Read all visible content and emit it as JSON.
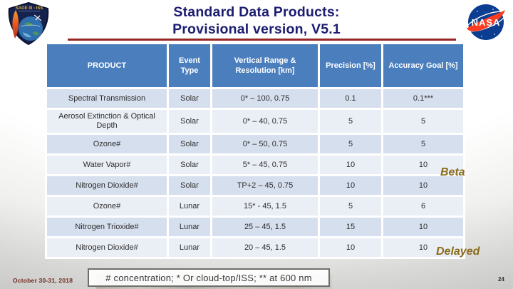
{
  "slide": {
    "title_line1": "Standard Data Products:",
    "title_line2": "Provisional version, V5.1",
    "footnote": "# concentration; * Or cloud-top/ISS; ** at 600 nm",
    "date": "October 30-31, 2018",
    "page_number": "24"
  },
  "logos": {
    "patch_text": "SAGE III - ISS",
    "nasa_text": "NASA"
  },
  "table": {
    "columns": [
      "PRODUCT",
      "Event Type",
      "Vertical Range & Resolution [km]",
      "Precision [%]",
      "Accuracy Goal [%]"
    ],
    "rows": [
      {
        "product": "Spectral Transmission",
        "event": "Solar",
        "range": "0* – 100, 0.75",
        "precision": "0.1",
        "accuracy": "0.1***",
        "annotation": ""
      },
      {
        "product": "Aerosol Extinction & Optical Depth",
        "event": "Solar",
        "range": "0* – 40, 0.75",
        "precision": "5",
        "accuracy": "5",
        "annotation": ""
      },
      {
        "product": "Ozone#",
        "event": "Solar",
        "range": "0* – 50, 0.75",
        "precision": "5",
        "accuracy": "5",
        "annotation": ""
      },
      {
        "product": "Water Vapor#",
        "event": "Solar",
        "range": "5* – 45, 0.75",
        "precision": "10",
        "accuracy": "10",
        "annotation": "Beta"
      },
      {
        "product": "Nitrogen Dioxide#",
        "event": "Solar",
        "range": "TP+2 – 45, 0.75",
        "precision": "10",
        "accuracy": "10",
        "annotation": ""
      },
      {
        "product": "Ozone#",
        "event": "Lunar",
        "range": "15* - 45, 1.5",
        "precision": "5",
        "accuracy": "6",
        "annotation": ""
      },
      {
        "product": "Nitrogen Trioxide#",
        "event": "Lunar",
        "range": "25 – 45, 1.5",
        "precision": "15",
        "accuracy": "10",
        "annotation": ""
      },
      {
        "product": "Nitrogen Dioxide#",
        "event": "Lunar",
        "range": "20 – 45, 1.5",
        "precision": "10",
        "accuracy": "10",
        "annotation": "Delayed"
      }
    ]
  },
  "annotations": {
    "beta": "Beta",
    "delayed": "Delayed"
  },
  "colors": {
    "header_blue": "#4a7ebd",
    "row_dark": "#d6dfee",
    "row_light": "#eaeef5",
    "title_navy": "#1c1c70",
    "rule_maroon": "#952824",
    "annotation_gold": "#8c6c1c",
    "footnote_border": "#6f6f6f",
    "date_maroon": "#702a1d"
  }
}
